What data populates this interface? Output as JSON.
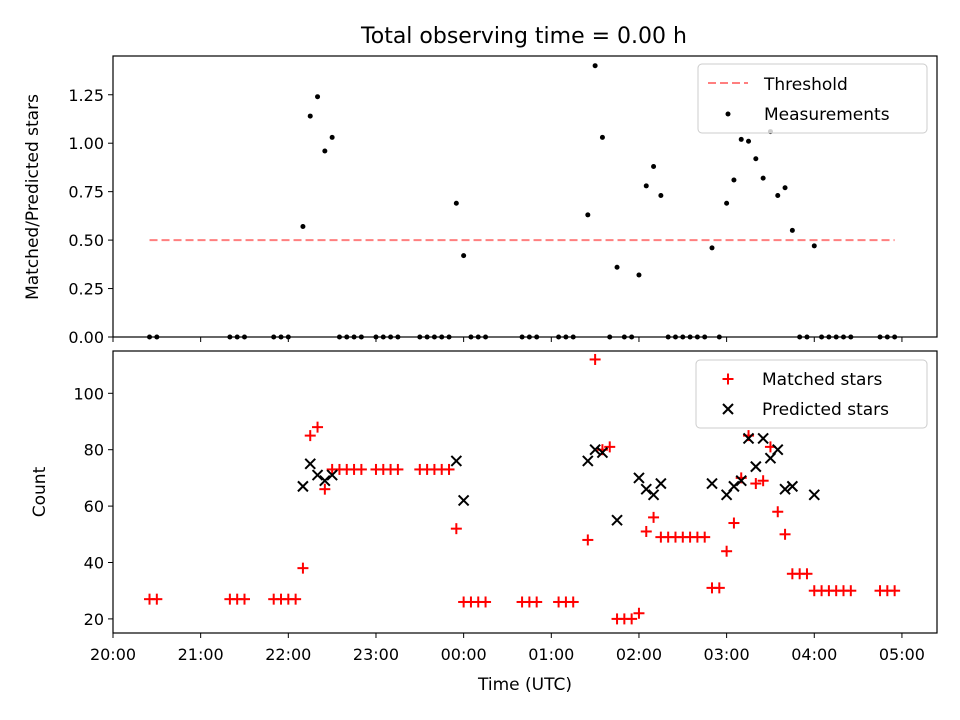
{
  "colors": {
    "threshold": "#ff7f7f",
    "measurements": "#000000",
    "matched": "#ff0000",
    "predicted": "#000000",
    "axes": "#000000",
    "background": "#ffffff"
  },
  "chart_data": [
    {
      "type": "scatter",
      "title": "Total observing time = 0.00 h",
      "xlabel": "",
      "ylabel": "Matched/Predicted stars",
      "xlim": [
        "20:00",
        "05:24"
      ],
      "ylim": [
        0,
        1.45
      ],
      "yticks": [
        "0.00",
        "0.25",
        "0.50",
        "0.75",
        "1.00",
        "1.25"
      ],
      "grid": false,
      "legend": "top-right",
      "threshold": {
        "name": "Threshold",
        "value": 0.5,
        "x_start": "20:25",
        "x_end": "04:55",
        "style": "dashed"
      },
      "series": [
        {
          "name": "Measurements",
          "points": [
            [
              "20:25",
              0
            ],
            [
              "20:30",
              0
            ],
            [
              "21:20",
              0
            ],
            [
              "21:25",
              0
            ],
            [
              "21:30",
              0
            ],
            [
              "21:50",
              0
            ],
            [
              "21:55",
              0
            ],
            [
              "22:00",
              0
            ],
            [
              "22:10",
              0.57
            ],
            [
              "22:15",
              1.14
            ],
            [
              "22:20",
              1.24
            ],
            [
              "22:25",
              0.96
            ],
            [
              "22:30",
              1.03
            ],
            [
              "22:35",
              0
            ],
            [
              "22:40",
              0
            ],
            [
              "22:45",
              0
            ],
            [
              "22:50",
              0
            ],
            [
              "23:00",
              0
            ],
            [
              "23:05",
              0
            ],
            [
              "23:10",
              0
            ],
            [
              "23:15",
              0
            ],
            [
              "23:30",
              0
            ],
            [
              "23:35",
              0
            ],
            [
              "23:40",
              0
            ],
            [
              "23:45",
              0
            ],
            [
              "23:50",
              0
            ],
            [
              "23:55",
              0.69
            ],
            [
              "00:00",
              0.42
            ],
            [
              "00:05",
              0
            ],
            [
              "00:10",
              0
            ],
            [
              "00:15",
              0
            ],
            [
              "00:40",
              0
            ],
            [
              "00:45",
              0
            ],
            [
              "00:50",
              0
            ],
            [
              "01:05",
              0
            ],
            [
              "01:10",
              0
            ],
            [
              "01:15",
              0
            ],
            [
              "01:25",
              0.63
            ],
            [
              "01:30",
              1.4
            ],
            [
              "01:35",
              1.03
            ],
            [
              "01:40",
              0
            ],
            [
              "01:45",
              0.36
            ],
            [
              "01:50",
              0
            ],
            [
              "01:55",
              0
            ],
            [
              "02:00",
              0.32
            ],
            [
              "02:05",
              0.78
            ],
            [
              "02:10",
              0.88
            ],
            [
              "02:15",
              0.73
            ],
            [
              "02:20",
              0
            ],
            [
              "02:25",
              0
            ],
            [
              "02:30",
              0
            ],
            [
              "02:35",
              0
            ],
            [
              "02:40",
              0
            ],
            [
              "02:45",
              0
            ],
            [
              "02:50",
              0.46
            ],
            [
              "02:55",
              0
            ],
            [
              "03:00",
              0.69
            ],
            [
              "03:05",
              0.81
            ],
            [
              "03:10",
              1.02
            ],
            [
              "03:15",
              1.01
            ],
            [
              "03:20",
              0.92
            ],
            [
              "03:25",
              0.82
            ],
            [
              "03:30",
              1.06
            ],
            [
              "03:35",
              0.73
            ],
            [
              "03:40",
              0.77
            ],
            [
              "03:45",
              0.55
            ],
            [
              "03:50",
              0
            ],
            [
              "03:55",
              0
            ],
            [
              "04:00",
              0.47
            ],
            [
              "04:05",
              0
            ],
            [
              "04:10",
              0
            ],
            [
              "04:15",
              0
            ],
            [
              "04:20",
              0
            ],
            [
              "04:25",
              0
            ],
            [
              "04:45",
              0
            ],
            [
              "04:50",
              0
            ],
            [
              "04:55",
              0
            ]
          ]
        }
      ]
    },
    {
      "type": "scatter",
      "title": "",
      "xlabel": "Time (UTC)",
      "ylabel": "Count",
      "xlim": [
        "20:00",
        "05:24"
      ],
      "ylim": [
        15,
        115
      ],
      "xticks": [
        "20:00",
        "21:00",
        "22:00",
        "23:00",
        "00:00",
        "01:00",
        "02:00",
        "03:00",
        "04:00",
        "05:00"
      ],
      "yticks": [
        "20",
        "40",
        "60",
        "80",
        "100"
      ],
      "grid": false,
      "legend": "top-right",
      "series": [
        {
          "name": "Matched stars",
          "marker": "+",
          "points": [
            [
              "20:25",
              27
            ],
            [
              "20:30",
              27
            ],
            [
              "21:20",
              27
            ],
            [
              "21:25",
              27
            ],
            [
              "21:30",
              27
            ],
            [
              "21:50",
              27
            ],
            [
              "21:55",
              27
            ],
            [
              "22:00",
              27
            ],
            [
              "22:05",
              27
            ],
            [
              "22:10",
              38
            ],
            [
              "22:15",
              85
            ],
            [
              "22:20",
              88
            ],
            [
              "22:25",
              66
            ],
            [
              "22:30",
              73
            ],
            [
              "22:35",
              73
            ],
            [
              "22:40",
              73
            ],
            [
              "22:45",
              73
            ],
            [
              "22:50",
              73
            ],
            [
              "23:00",
              73
            ],
            [
              "23:05",
              73
            ],
            [
              "23:10",
              73
            ],
            [
              "23:15",
              73
            ],
            [
              "23:30",
              73
            ],
            [
              "23:35",
              73
            ],
            [
              "23:40",
              73
            ],
            [
              "23:45",
              73
            ],
            [
              "23:50",
              73
            ],
            [
              "23:55",
              52
            ],
            [
              "00:00",
              26
            ],
            [
              "00:05",
              26
            ],
            [
              "00:10",
              26
            ],
            [
              "00:15",
              26
            ],
            [
              "00:40",
              26
            ],
            [
              "00:45",
              26
            ],
            [
              "00:50",
              26
            ],
            [
              "01:05",
              26
            ],
            [
              "01:10",
              26
            ],
            [
              "01:15",
              26
            ],
            [
              "01:25",
              48
            ],
            [
              "01:30",
              112
            ],
            [
              "01:35",
              80
            ],
            [
              "01:40",
              81
            ],
            [
              "01:45",
              20
            ],
            [
              "01:50",
              20
            ],
            [
              "01:55",
              20
            ],
            [
              "02:00",
              22
            ],
            [
              "02:05",
              51
            ],
            [
              "02:10",
              56
            ],
            [
              "02:15",
              49
            ],
            [
              "02:20",
              49
            ],
            [
              "02:25",
              49
            ],
            [
              "02:30",
              49
            ],
            [
              "02:35",
              49
            ],
            [
              "02:40",
              49
            ],
            [
              "02:45",
              49
            ],
            [
              "02:50",
              31
            ],
            [
              "02:55",
              31
            ],
            [
              "03:00",
              44
            ],
            [
              "03:05",
              54
            ],
            [
              "03:10",
              70
            ],
            [
              "03:15",
              85
            ],
            [
              "03:20",
              68
            ],
            [
              "03:25",
              69
            ],
            [
              "03:30",
              81
            ],
            [
              "03:35",
              58
            ],
            [
              "03:40",
              50
            ],
            [
              "03:45",
              36
            ],
            [
              "03:50",
              36
            ],
            [
              "03:55",
              36
            ],
            [
              "04:00",
              30
            ],
            [
              "04:05",
              30
            ],
            [
              "04:10",
              30
            ],
            [
              "04:15",
              30
            ],
            [
              "04:20",
              30
            ],
            [
              "04:25",
              30
            ],
            [
              "04:45",
              30
            ],
            [
              "04:50",
              30
            ],
            [
              "04:55",
              30
            ]
          ]
        },
        {
          "name": "Predicted stars",
          "marker": "x",
          "points": [
            [
              "22:10",
              67
            ],
            [
              "22:15",
              75
            ],
            [
              "22:20",
              71
            ],
            [
              "22:25",
              69
            ],
            [
              "22:30",
              71
            ],
            [
              "23:55",
              76
            ],
            [
              "00:00",
              62
            ],
            [
              "01:25",
              76
            ],
            [
              "01:30",
              80
            ],
            [
              "01:35",
              79
            ],
            [
              "01:45",
              55
            ],
            [
              "02:00",
              70
            ],
            [
              "02:05",
              66
            ],
            [
              "02:10",
              64
            ],
            [
              "02:15",
              68
            ],
            [
              "02:50",
              68
            ],
            [
              "03:00",
              64
            ],
            [
              "03:05",
              67
            ],
            [
              "03:10",
              69
            ],
            [
              "03:15",
              84
            ],
            [
              "03:20",
              74
            ],
            [
              "03:25",
              84
            ],
            [
              "03:30",
              77
            ],
            [
              "03:35",
              80
            ],
            [
              "03:40",
              66
            ],
            [
              "03:45",
              67
            ],
            [
              "04:00",
              64
            ]
          ]
        }
      ]
    }
  ]
}
